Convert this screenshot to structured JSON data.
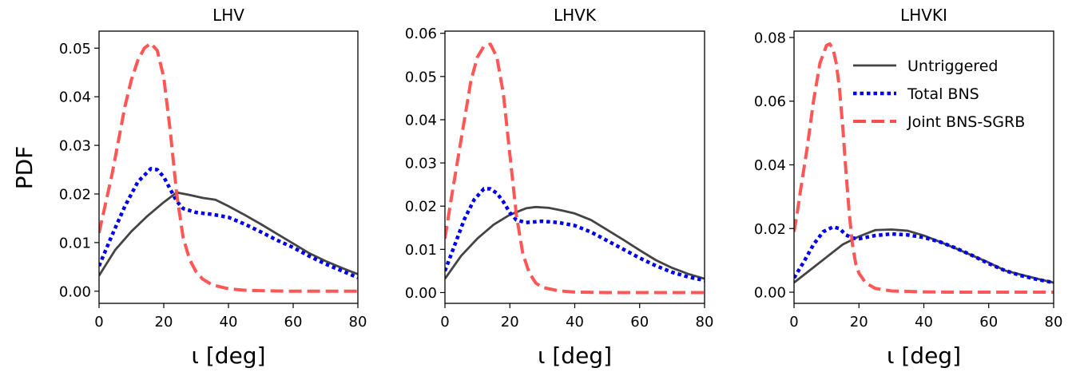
{
  "ylabel": "PDF",
  "legend": [
    {
      "label": "Untriggered",
      "color": "#444444",
      "style": "solid"
    },
    {
      "label": "Total BNS",
      "color": "#0000ee",
      "style": "dotted"
    },
    {
      "label": "Joint BNS-SGRB",
      "color": "#ff4d4d",
      "style": "dashed"
    }
  ],
  "chart_data": [
    {
      "type": "line",
      "title": "LHV",
      "xlabel": "ι [deg]",
      "xlim": [
        0,
        80
      ],
      "ylim": [
        -0.0025,
        0.0535
      ],
      "xticks": [
        0,
        20,
        40,
        60,
        80
      ],
      "yticks": [
        0.0,
        0.01,
        0.02,
        0.03,
        0.04,
        0.05
      ],
      "ytick_labels": [
        "0.00",
        "0.01",
        "0.02",
        "0.03",
        "0.04",
        "0.05"
      ],
      "series": [
        {
          "name": "Untriggered",
          "x": [
            0,
            5,
            10,
            15,
            20,
            24,
            28,
            32,
            36,
            40,
            45,
            50,
            55,
            60,
            65,
            70,
            75,
            80
          ],
          "y": [
            0.0032,
            0.0085,
            0.0123,
            0.0155,
            0.0183,
            0.0203,
            0.0198,
            0.0192,
            0.0188,
            0.0175,
            0.0157,
            0.0138,
            0.0118,
            0.0098,
            0.0078,
            0.0062,
            0.0048,
            0.0035
          ]
        },
        {
          "name": "Total BNS",
          "x": [
            0,
            4,
            8,
            12,
            16,
            18,
            20,
            22,
            24,
            26,
            30,
            35,
            40,
            45,
            50,
            55,
            60,
            65,
            70,
            75,
            80
          ],
          "y": [
            0.0052,
            0.0115,
            0.0175,
            0.0225,
            0.0252,
            0.025,
            0.0235,
            0.021,
            0.0185,
            0.017,
            0.0162,
            0.0158,
            0.0152,
            0.0138,
            0.0122,
            0.0105,
            0.009,
            0.0072,
            0.0056,
            0.0042,
            0.0028
          ]
        },
        {
          "name": "Joint BNS-SGRB",
          "x": [
            0,
            2,
            4,
            6,
            8,
            10,
            12,
            14,
            16,
            18,
            20,
            22,
            24,
            26,
            28,
            30,
            32,
            35,
            40,
            45,
            50,
            60,
            70,
            80
          ],
          "y": [
            0.012,
            0.018,
            0.024,
            0.031,
            0.038,
            0.0435,
            0.0475,
            0.05,
            0.051,
            0.0495,
            0.044,
            0.033,
            0.02,
            0.011,
            0.0065,
            0.004,
            0.0025,
            0.0013,
            0.0005,
            0.0002,
            0.0001,
            0.0,
            0.0,
            0.0
          ]
        }
      ]
    },
    {
      "type": "line",
      "title": "LHVK",
      "xlabel": "ι [deg]",
      "xlim": [
        0,
        80
      ],
      "ylim": [
        -0.0025,
        0.0605
      ],
      "xticks": [
        0,
        20,
        40,
        60,
        80
      ],
      "yticks": [
        0.0,
        0.01,
        0.02,
        0.03,
        0.04,
        0.05,
        0.06
      ],
      "ytick_labels": [
        "0.00",
        "0.01",
        "0.02",
        "0.03",
        "0.04",
        "0.05",
        "0.06"
      ],
      "series": [
        {
          "name": "Untriggered",
          "x": [
            0,
            5,
            10,
            15,
            20,
            25,
            28,
            32,
            36,
            40,
            45,
            50,
            55,
            60,
            65,
            70,
            75,
            80
          ],
          "y": [
            0.0032,
            0.0085,
            0.0125,
            0.0157,
            0.018,
            0.0195,
            0.0198,
            0.0196,
            0.019,
            0.0183,
            0.0168,
            0.0145,
            0.0122,
            0.0098,
            0.0075,
            0.0057,
            0.0043,
            0.0032
          ]
        },
        {
          "name": "Total BNS",
          "x": [
            0,
            3,
            6,
            9,
            12,
            14,
            16,
            18,
            20,
            22,
            25,
            30,
            35,
            40,
            45,
            50,
            55,
            60,
            65,
            70,
            75,
            80
          ],
          "y": [
            0.005,
            0.011,
            0.017,
            0.0215,
            0.024,
            0.024,
            0.023,
            0.021,
            0.0185,
            0.0168,
            0.0162,
            0.0165,
            0.0162,
            0.0155,
            0.014,
            0.012,
            0.01,
            0.008,
            0.0062,
            0.0047,
            0.0036,
            0.0028
          ]
        },
        {
          "name": "Joint BNS-SGRB",
          "x": [
            0,
            2,
            4,
            6,
            8,
            10,
            12,
            14,
            16,
            18,
            20,
            22,
            24,
            26,
            28,
            30,
            35,
            40,
            50,
            60,
            70,
            80
          ],
          "y": [
            0.0125,
            0.022,
            0.031,
            0.04,
            0.049,
            0.0545,
            0.057,
            0.0575,
            0.0545,
            0.046,
            0.032,
            0.018,
            0.009,
            0.0045,
            0.0022,
            0.0012,
            0.0004,
            0.0001,
            0.0,
            0.0,
            0.0,
            0.0
          ]
        }
      ]
    },
    {
      "type": "line",
      "title": "LHVKI",
      "xlabel": "ι [deg]",
      "xlim": [
        0,
        80
      ],
      "ylim": [
        -0.0035,
        0.082
      ],
      "xticks": [
        0,
        20,
        40,
        60,
        80
      ],
      "yticks": [
        0.0,
        0.02,
        0.04,
        0.06,
        0.08
      ],
      "ytick_labels": [
        "0.00",
        "0.02",
        "0.04",
        "0.06",
        "0.08"
      ],
      "series": [
        {
          "name": "Untriggered",
          "x": [
            0,
            5,
            10,
            15,
            20,
            25,
            30,
            35,
            40,
            45,
            50,
            55,
            60,
            65,
            70,
            75,
            80
          ],
          "y": [
            0.003,
            0.007,
            0.011,
            0.015,
            0.0175,
            0.0195,
            0.0197,
            0.0193,
            0.0178,
            0.0158,
            0.0137,
            0.0115,
            0.0093,
            0.0068,
            0.0055,
            0.0042,
            0.003
          ]
        },
        {
          "name": "Total BNS",
          "x": [
            0,
            3,
            6,
            9,
            12,
            14,
            16,
            18,
            20,
            25,
            30,
            35,
            40,
            45,
            50,
            55,
            60,
            65,
            70,
            75,
            80
          ],
          "y": [
            0.0045,
            0.0095,
            0.015,
            0.019,
            0.0205,
            0.02,
            0.018,
            0.017,
            0.0168,
            0.0178,
            0.0183,
            0.018,
            0.0172,
            0.0158,
            0.0138,
            0.0115,
            0.009,
            0.0068,
            0.0052,
            0.004,
            0.003
          ]
        },
        {
          "name": "Joint BNS-SGRB",
          "x": [
            0,
            1,
            2,
            4,
            6,
            8,
            10,
            11,
            12,
            13,
            14,
            15,
            16,
            17,
            18,
            19,
            20,
            22,
            25,
            30,
            40,
            50,
            60,
            70,
            80
          ],
          "y": [
            0.019,
            0.025,
            0.032,
            0.045,
            0.06,
            0.072,
            0.0775,
            0.078,
            0.0765,
            0.072,
            0.064,
            0.052,
            0.038,
            0.025,
            0.015,
            0.009,
            0.006,
            0.003,
            0.0012,
            0.0004,
            0.0001,
            0.0,
            0.0,
            0.0,
            0.0
          ]
        }
      ]
    }
  ]
}
